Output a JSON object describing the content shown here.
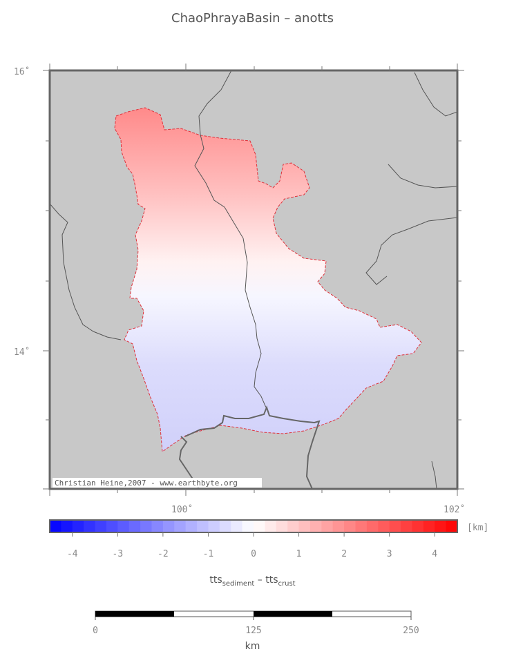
{
  "title": "ChaoPhrayaBasin – anotts",
  "credit": "Christian Heine,2007 - www.earthbyte.org",
  "map": {
    "lat_labels": [
      "16˚",
      "14˚"
    ],
    "lon_labels": [
      "100˚",
      "102˚"
    ]
  },
  "colorbar": {
    "unit": "[km]",
    "ticks": [
      "-4",
      "-3",
      "-2",
      "-1",
      "0",
      "1",
      "2",
      "3",
      "4"
    ],
    "range": [
      -4.5,
      4.5
    ],
    "colors": {
      "negative": "#0000ff",
      "zero": "#ffffff",
      "positive": "#ff0000"
    }
  },
  "formula": {
    "a": "tts",
    "a_sub": "sediment",
    "op": " – ",
    "b": "tts",
    "b_sub": "crust"
  },
  "scalebar": {
    "labels": [
      "0",
      "125",
      "250"
    ],
    "unit": "km"
  },
  "colors": {
    "land": "#c8c8c8",
    "frame": "#666666",
    "boundary": "#e0303a",
    "rivers": "#555555"
  }
}
